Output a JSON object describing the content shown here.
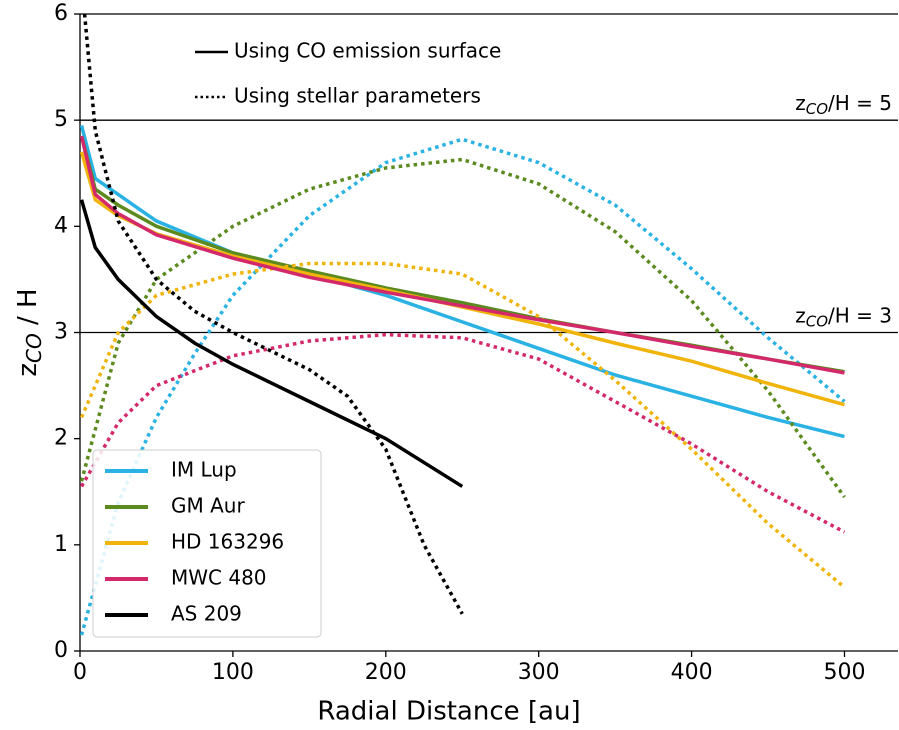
{
  "chart_data": {
    "type": "line",
    "xlabel": "Radial Distance [au]",
    "ylabel": {
      "main": "z",
      "sub": "CO",
      "suffix": " / H"
    },
    "xlim": [
      0,
      535
    ],
    "ylim": [
      0,
      6
    ],
    "xticks": [
      0,
      100,
      200,
      300,
      400,
      500
    ],
    "yticks": [
      0,
      1,
      2,
      3,
      4,
      5,
      6
    ],
    "style_legend": [
      "Using CO emission surface",
      "Using stellar parameters"
    ],
    "hlines": [
      {
        "y": 5,
        "main": "z",
        "sub": "CO",
        "suffix": "/H = 5"
      },
      {
        "y": 3,
        "main": "z",
        "sub": "CO",
        "suffix": "/H = 3"
      }
    ],
    "legend": "lower left",
    "series": [
      {
        "name": "IM Lup",
        "color": "#29b2e3",
        "emission": {
          "x": [
            1,
            10,
            25,
            50,
            100,
            150,
            200,
            250,
            300,
            350,
            400,
            450,
            500
          ],
          "values": [
            4.95,
            4.45,
            4.3,
            4.05,
            3.75,
            3.55,
            3.35,
            3.1,
            2.85,
            2.6,
            2.4,
            2.2,
            2.02
          ]
        },
        "stellar": {
          "x": [
            1,
            25,
            50,
            75,
            100,
            150,
            200,
            250,
            300,
            350,
            400,
            450,
            500
          ],
          "values": [
            0.15,
            1.4,
            2.2,
            2.8,
            3.35,
            4.1,
            4.6,
            4.82,
            4.6,
            4.2,
            3.6,
            2.95,
            2.35
          ]
        }
      },
      {
        "name": "GM Aur",
        "color": "#5b8a1e",
        "emission": {
          "x": [
            1,
            10,
            25,
            50,
            100,
            150,
            200,
            250,
            300,
            350,
            400,
            450,
            500
          ],
          "values": [
            4.85,
            4.35,
            4.2,
            4.0,
            3.75,
            3.58,
            3.42,
            3.28,
            3.13,
            3.0,
            2.88,
            2.75,
            2.63
          ]
        },
        "stellar": {
          "x": [
            1,
            25,
            50,
            100,
            150,
            200,
            250,
            300,
            350,
            400,
            450,
            500
          ],
          "values": [
            1.6,
            2.9,
            3.5,
            4.0,
            4.35,
            4.55,
            4.63,
            4.4,
            3.95,
            3.3,
            2.45,
            1.45
          ]
        }
      },
      {
        "name": "HD 163296",
        "color": "#f0b40c",
        "emission": {
          "x": [
            1,
            10,
            25,
            50,
            100,
            150,
            200,
            250,
            300,
            350,
            400,
            450,
            500
          ],
          "values": [
            4.7,
            4.25,
            4.1,
            3.93,
            3.72,
            3.55,
            3.4,
            3.24,
            3.08,
            2.9,
            2.73,
            2.52,
            2.32
          ]
        },
        "stellar": {
          "x": [
            1,
            25,
            50,
            100,
            150,
            200,
            250,
            300,
            350,
            400,
            450,
            500
          ],
          "values": [
            2.2,
            3.0,
            3.35,
            3.55,
            3.65,
            3.65,
            3.55,
            3.15,
            2.55,
            1.9,
            1.2,
            0.6
          ]
        }
      },
      {
        "name": "MWC 480",
        "color": "#d3286a",
        "emission": {
          "x": [
            1,
            10,
            25,
            50,
            100,
            150,
            200,
            250,
            300,
            350,
            400,
            450,
            500
          ],
          "values": [
            4.85,
            4.3,
            4.12,
            3.92,
            3.7,
            3.52,
            3.38,
            3.25,
            3.12,
            3.0,
            2.87,
            2.75,
            2.62
          ]
        },
        "stellar": {
          "x": [
            1,
            25,
            50,
            100,
            150,
            200,
            250,
            300,
            350,
            400,
            450,
            500
          ],
          "values": [
            1.55,
            2.15,
            2.5,
            2.78,
            2.92,
            2.98,
            2.95,
            2.75,
            2.35,
            1.95,
            1.5,
            1.12
          ]
        }
      },
      {
        "name": "AS 209",
        "color": "#000000",
        "emission": {
          "x": [
            1,
            10,
            25,
            50,
            75,
            100,
            150,
            200,
            250
          ],
          "values": [
            4.25,
            3.8,
            3.5,
            3.15,
            2.9,
            2.7,
            2.35,
            2.0,
            1.55
          ]
        },
        "stellar": {
          "x": [
            3,
            10,
            25,
            50,
            75,
            100,
            150,
            175,
            200,
            225,
            250
          ],
          "values": [
            6.0,
            4.9,
            4.05,
            3.5,
            3.2,
            3.0,
            2.65,
            2.4,
            1.9,
            1.0,
            0.35
          ]
        }
      }
    ]
  }
}
